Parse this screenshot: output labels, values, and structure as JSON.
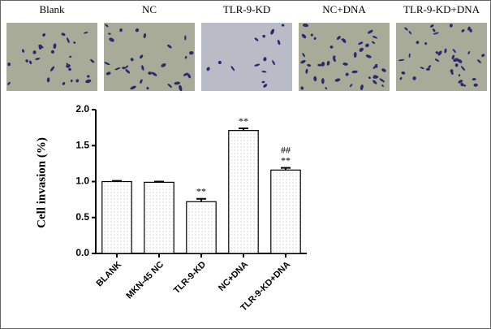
{
  "panels": [
    "Blank",
    "NC",
    "TLR-9-KD",
    "NC+DNA",
    "TLR-9-KD+DNA"
  ],
  "chart_data": {
    "type": "bar",
    "ylabel": "Cell invasion  (%)",
    "categories": [
      "BLANK",
      "MKN-45 NC",
      "TLR-9-KD",
      "NC+DNA",
      "TLR-9-KD+DNA"
    ],
    "values": [
      1.0,
      0.99,
      0.72,
      1.71,
      1.16
    ],
    "errors": [
      0.01,
      0.01,
      0.04,
      0.03,
      0.03
    ],
    "color": "#ffffff",
    "ylim": [
      0,
      2.0
    ],
    "yticks": [
      {
        "value": 0,
        "label": "0.0"
      },
      0.5,
      {
        "value": 1.0,
        "label": "1.0"
      },
      1.5,
      {
        "value": 2.0,
        "label": "2.0"
      }
    ],
    "annotations": [
      {
        "category": "TLR-9-KD",
        "text": "**"
      },
      {
        "category": "NC+DNA",
        "text": "**"
      },
      {
        "category": "TLR-9-KD+DNA",
        "text": "**"
      },
      {
        "category": "TLR-9-KD+DNA",
        "text": "##"
      }
    ]
  }
}
